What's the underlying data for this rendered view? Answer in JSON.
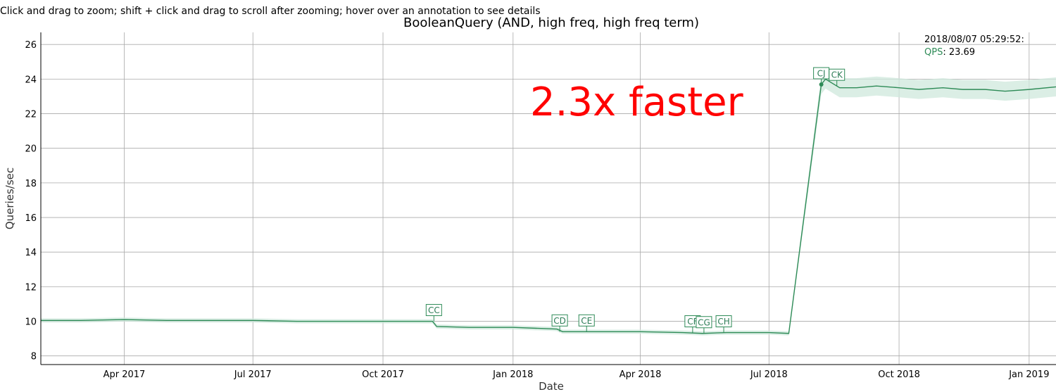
{
  "instructions": "Click and drag to zoom; shift + click and drag to scroll after zooming; hover over an annotation to see details",
  "colors": {
    "series": "#2e8b57",
    "band": "#cfe8dc",
    "note": "#ff0000",
    "grid": "#aaaaaa"
  },
  "legend": {
    "timestamp": "2018/08/07 05:29:52:",
    "series_label": "QPS",
    "series_value": "23.69"
  },
  "chart_data": {
    "type": "line",
    "title": "BooleanQuery (AND, high freq, high freq term)",
    "xlabel": "Date",
    "ylabel": "Queries/sec",
    "xlim": [
      "2017-02-01",
      "2019-01-20"
    ],
    "ylim": [
      7.5,
      26.7
    ],
    "grid": true,
    "legend_position": "top-right",
    "x_ticks": [
      {
        "date": "2017-04-01",
        "label": "Apr 2017"
      },
      {
        "date": "2017-07-01",
        "label": "Jul 2017"
      },
      {
        "date": "2017-10-01",
        "label": "Oct 2017"
      },
      {
        "date": "2018-01-01",
        "label": "Jan 2018"
      },
      {
        "date": "2018-04-01",
        "label": "Apr 2018"
      },
      {
        "date": "2018-07-01",
        "label": "Jul 2018"
      },
      {
        "date": "2018-10-01",
        "label": "Oct 2018"
      },
      {
        "date": "2019-01-01",
        "label": "Jan 2019"
      }
    ],
    "y_ticks": [
      8,
      10,
      12,
      14,
      16,
      18,
      20,
      22,
      24,
      26
    ],
    "series": [
      {
        "name": "QPS",
        "points": [
          {
            "x": "2017-02-01",
            "y": 10.05
          },
          {
            "x": "2017-03-01",
            "y": 10.05
          },
          {
            "x": "2017-04-01",
            "y": 10.1
          },
          {
            "x": "2017-05-01",
            "y": 10.05
          },
          {
            "x": "2017-06-01",
            "y": 10.05
          },
          {
            "x": "2017-07-01",
            "y": 10.05
          },
          {
            "x": "2017-08-01",
            "y": 10.0
          },
          {
            "x": "2017-09-01",
            "y": 10.0
          },
          {
            "x": "2017-10-01",
            "y": 10.0
          },
          {
            "x": "2017-11-05",
            "y": 10.0
          },
          {
            "x": "2017-11-08",
            "y": 9.7
          },
          {
            "x": "2017-12-01",
            "y": 9.65
          },
          {
            "x": "2018-01-01",
            "y": 9.65
          },
          {
            "x": "2018-02-01",
            "y": 9.55
          },
          {
            "x": "2018-02-05",
            "y": 9.4
          },
          {
            "x": "2018-03-01",
            "y": 9.4
          },
          {
            "x": "2018-04-01",
            "y": 9.4
          },
          {
            "x": "2018-05-01",
            "y": 9.35
          },
          {
            "x": "2018-05-15",
            "y": 9.3
          },
          {
            "x": "2018-06-01",
            "y": 9.35
          },
          {
            "x": "2018-07-01",
            "y": 9.35
          },
          {
            "x": "2018-07-15",
            "y": 9.3
          },
          {
            "x": "2018-08-07",
            "y": 23.69
          },
          {
            "x": "2018-08-10",
            "y": 24.0
          },
          {
            "x": "2018-08-20",
            "y": 23.5
          },
          {
            "x": "2018-09-01",
            "y": 23.5
          },
          {
            "x": "2018-09-15",
            "y": 23.6
          },
          {
            "x": "2018-10-01",
            "y": 23.5
          },
          {
            "x": "2018-10-15",
            "y": 23.4
          },
          {
            "x": "2018-11-01",
            "y": 23.5
          },
          {
            "x": "2018-11-15",
            "y": 23.4
          },
          {
            "x": "2018-12-01",
            "y": 23.4
          },
          {
            "x": "2018-12-15",
            "y": 23.3
          },
          {
            "x": "2019-01-01",
            "y": 23.4
          },
          {
            "x": "2019-01-20",
            "y": 23.55
          }
        ]
      }
    ],
    "annotations": [
      {
        "label": "CC",
        "x": "2017-11-06",
        "y": 10.0
      },
      {
        "label": "CD",
        "x": "2018-02-03",
        "y": 9.4
      },
      {
        "label": "CE",
        "x": "2018-02-22",
        "y": 9.4
      },
      {
        "label": "CF",
        "x": "2018-05-08",
        "y": 9.35
      },
      {
        "label": "CG",
        "x": "2018-05-16",
        "y": 9.3
      },
      {
        "label": "CH",
        "x": "2018-05-30",
        "y": 9.35
      },
      {
        "label": "CJ",
        "x": "2018-08-07",
        "y": 23.69
      },
      {
        "label": "CK",
        "x": "2018-08-18",
        "y": 23.6
      }
    ],
    "highlight_point": {
      "x": "2018-08-07",
      "y": 23.69
    },
    "note": "2.3x faster"
  }
}
